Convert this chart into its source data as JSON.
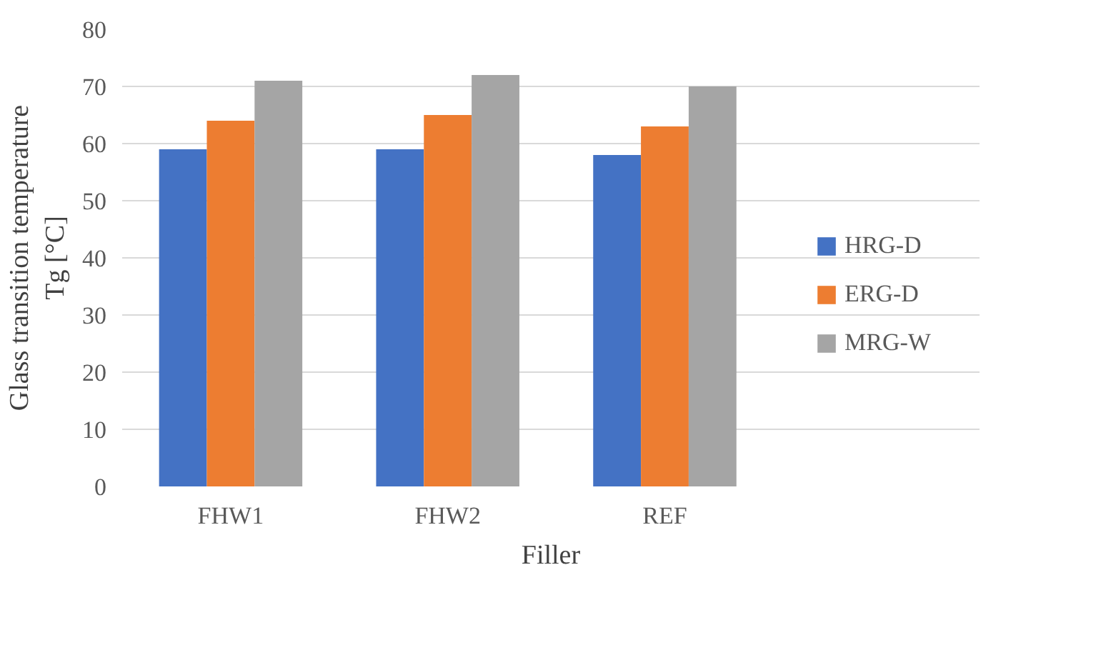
{
  "chart_data": {
    "type": "bar",
    "xlabel": "Filler",
    "ylabel": "Glass transition temperature\nTg [°C]",
    "categories": [
      "FHW1",
      "FHW2",
      "REF"
    ],
    "series": [
      {
        "name": "HRG-D",
        "color": "#4472c4",
        "values": [
          59,
          59,
          58
        ]
      },
      {
        "name": "ERG-D",
        "color": "#ed7d31",
        "values": [
          64,
          65,
          63
        ]
      },
      {
        "name": "MRG-W",
        "color": "#a5a5a5",
        "values": [
          71,
          72,
          70
        ]
      }
    ],
    "ylim": [
      0,
      80
    ],
    "yticks": [
      0,
      10,
      20,
      30,
      40,
      50,
      60,
      70,
      80
    ],
    "grid": "y",
    "legend": "right"
  }
}
